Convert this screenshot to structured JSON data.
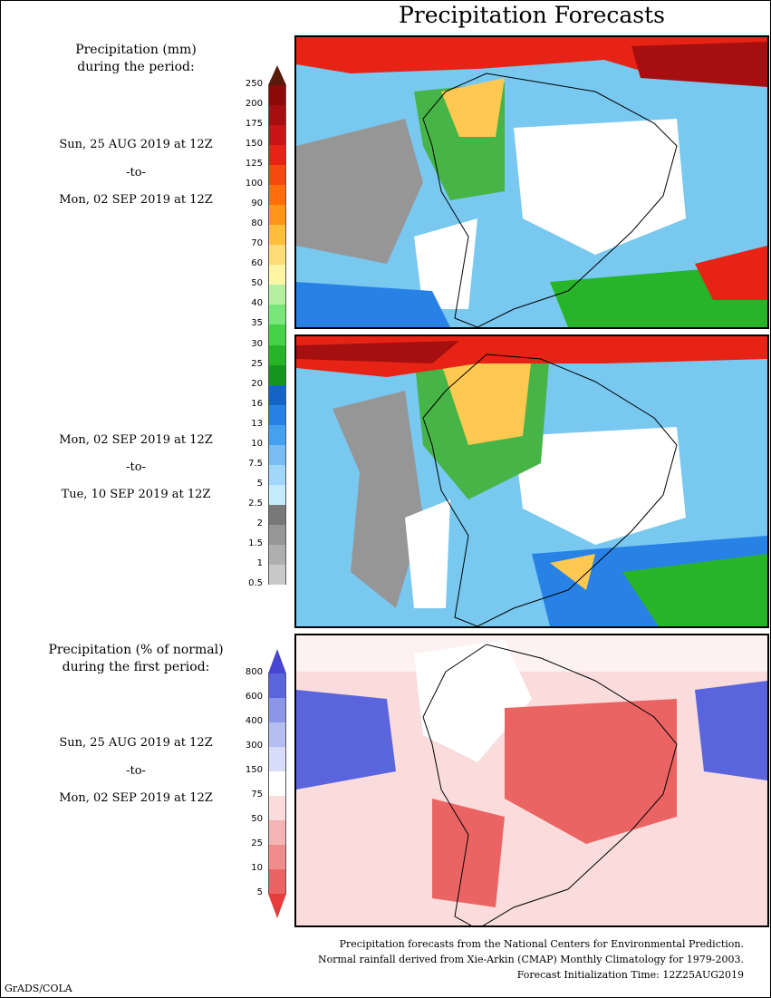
{
  "title": "Precipitation Forecasts",
  "precip_label": [
    "Precipitation (mm)",
    "during the period:"
  ],
  "period1": {
    "start": "Sun, 25 AUG 2019 at 12Z",
    "to": "-to-",
    "end": "Mon, 02 SEP 2019 at 12Z"
  },
  "period2": {
    "start": "Mon, 02 SEP 2019 at 12Z",
    "to": "-to-",
    "end": "Tue, 10 SEP 2019 at 12Z"
  },
  "pct_label": [
    "Precipitation (% of normal)",
    "during the first period:"
  ],
  "period3": {
    "start": "Sun, 25 AUG 2019 at 12Z",
    "to": "-to-",
    "end": "Mon, 02 SEP 2019 at 12Z"
  },
  "precip_scale": {
    "labels": [
      "250",
      "200",
      "175",
      "150",
      "125",
      "100",
      "90",
      "80",
      "70",
      "60",
      "50",
      "40",
      "35",
      "30",
      "25",
      "20",
      "16",
      "13",
      "10",
      "7.5",
      "5",
      "2.5",
      "2",
      "1.5",
      "1",
      "0.5"
    ],
    "colors": [
      "#5a1a0a",
      "#8c0a0a",
      "#a50f0f",
      "#c81414",
      "#e62314",
      "#f54a0f",
      "#ff6e0a",
      "#ff9619",
      "#ffbe3c",
      "#ffdc78",
      "#fff5a5",
      "#b4f0a0",
      "#78e678",
      "#46d246",
      "#28b428",
      "#14961e",
      "#1464c8",
      "#2882e6",
      "#46a0f0",
      "#78bef5",
      "#a0d7fa",
      "#c3ebfa",
      "#787878",
      "#969696",
      "#afafaf",
      "#c8c8c8",
      "#ffffff"
    ]
  },
  "pct_scale": {
    "labels": [
      "800",
      "600",
      "400",
      "300",
      "150",
      "75",
      "50",
      "25",
      "10",
      "5"
    ],
    "colors": [
      "#4646d2",
      "#5a64dc",
      "#8c96e6",
      "#b4bef0",
      "#d7dcf8",
      "#ffffff",
      "#fadcdc",
      "#f5b4b4",
      "#f08c8c",
      "#eb6464",
      "#e63c3c"
    ]
  },
  "footer": [
    "Precipitation forecasts from the National Centers for Environmental Prediction.",
    "Normal rainfall derived from Xie-Arkin (CMAP) Monthly Climatology for 1979-2003.",
    "Forecast Initialization Time: 12Z25AUG2019"
  ],
  "credit": "GrADS/COLA"
}
